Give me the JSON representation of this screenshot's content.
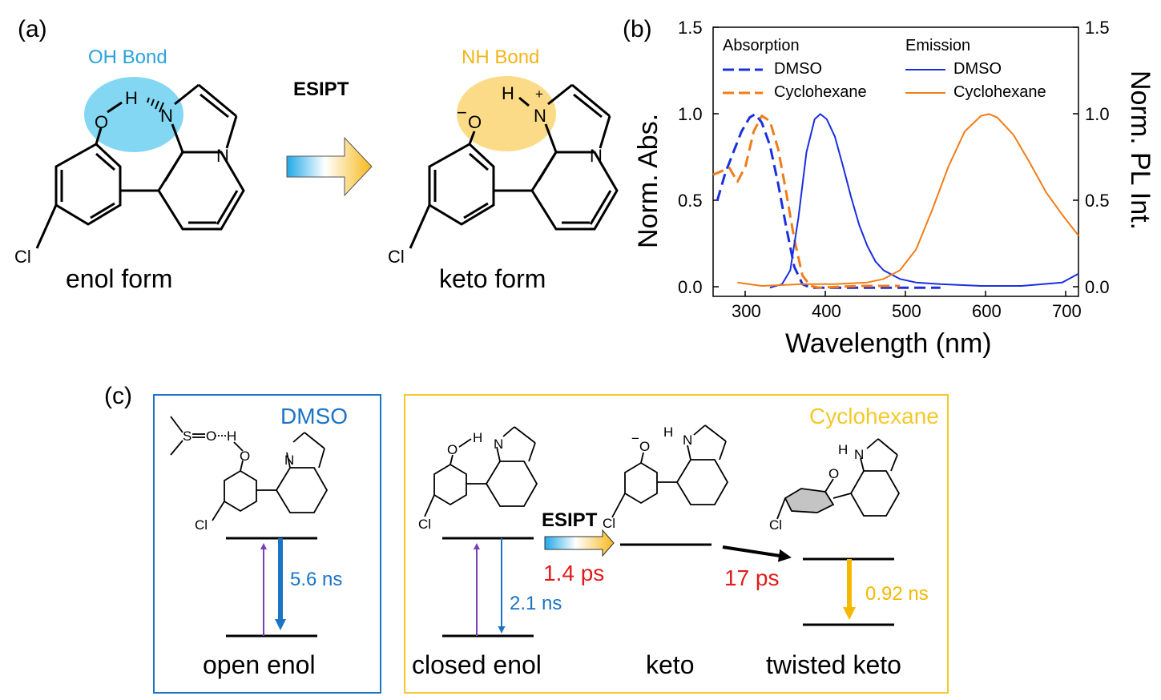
{
  "panel_a": {
    "label": "(a)",
    "oh_bond": "OH Bond",
    "nh_bond": "NH Bond",
    "esipt": "ESIPT",
    "enol_form": "enol form",
    "keto_form": "keto form",
    "atoms": {
      "O": "O",
      "H": "H",
      "N": "N",
      "Cl": "Cl",
      "minus": "−",
      "plus": "+"
    }
  },
  "panel_b": {
    "label": "(b)",
    "chart_data": {
      "type": "line",
      "xlabel": "Wavelength (nm)",
      "ylabel_left": "Norm. Abs.",
      "ylabel_right": "Norm. PL Int.",
      "xlim": [
        270,
        720
      ],
      "ylim": [
        -0.05,
        1.5
      ],
      "x_ticks": [
        "300",
        "400",
        "500",
        "600",
        "700"
      ],
      "y_ticks": [
        "0.0",
        "0.5",
        "1.0",
        "1.5"
      ],
      "legend": {
        "absorption_title": "Absorption",
        "emission_title": "Emission",
        "entries": [
          "DMSO",
          "Cyclohexane",
          "DMSO",
          "Cyclohexane"
        ]
      },
      "series": [
        {
          "name": "DMSO",
          "group": "Absorption",
          "style": "dashed",
          "color": "#1a2fe0",
          "x": [
            275,
            285,
            295,
            305,
            315,
            322,
            330,
            340,
            350,
            360,
            370,
            380,
            390,
            400,
            450,
            500,
            550
          ],
          "values": [
            0.5,
            0.66,
            0.78,
            0.9,
            0.98,
            1.0,
            0.95,
            0.82,
            0.6,
            0.35,
            0.12,
            0.02,
            0.0,
            0.0,
            0.0,
            0.0,
            0.0
          ]
        },
        {
          "name": "Cyclohexane",
          "group": "Absorption",
          "style": "dashed",
          "color": "#f07d1a",
          "x": [
            270,
            280,
            290,
            300,
            310,
            320,
            330,
            340,
            350,
            360,
            370,
            380,
            390,
            400,
            450,
            500
          ],
          "values": [
            0.65,
            0.67,
            0.69,
            0.61,
            0.7,
            0.9,
            0.99,
            0.96,
            0.8,
            0.55,
            0.28,
            0.07,
            0.01,
            0.0,
            0.01,
            0.01
          ]
        },
        {
          "name": "DMSO",
          "group": "Emission",
          "style": "solid",
          "color": "#1a2fe0",
          "x": [
            340,
            355,
            365,
            375,
            385,
            395,
            402,
            410,
            420,
            430,
            440,
            450,
            460,
            470,
            480,
            500,
            520,
            550,
            600,
            650,
            700,
            720
          ],
          "values": [
            0.0,
            0.02,
            0.1,
            0.4,
            0.78,
            0.97,
            1.0,
            0.97,
            0.87,
            0.7,
            0.52,
            0.36,
            0.24,
            0.15,
            0.1,
            0.05,
            0.03,
            0.02,
            0.01,
            0.01,
            0.03,
            0.08
          ]
        },
        {
          "name": "Cyclohexane",
          "group": "Emission",
          "style": "solid",
          "color": "#f07d1a",
          "x": [
            300,
            330,
            380,
            420,
            460,
            480,
            500,
            520,
            540,
            560,
            580,
            600,
            610,
            620,
            640,
            660,
            680,
            700,
            720
          ],
          "values": [
            0.03,
            0.01,
            0.02,
            0.02,
            0.03,
            0.05,
            0.1,
            0.22,
            0.45,
            0.7,
            0.9,
            0.99,
            1.0,
            0.98,
            0.88,
            0.72,
            0.55,
            0.42,
            0.3
          ]
        }
      ]
    }
  },
  "panel_c": {
    "label": "(c)",
    "dmso": "DMSO",
    "cyclohexane": "Cyclohexane",
    "open_enol": "open enol",
    "closed_enol": "closed enol",
    "keto": "keto",
    "twisted_keto": "twisted keto",
    "esipt": "ESIPT",
    "rate_dmso": "5.6 ns",
    "rate_closed": "2.1 ns",
    "rate_esipt": "1.4 ps",
    "rate_twist": "17 ps",
    "rate_twisted": "0.92 ns",
    "atoms": {
      "S": "S",
      "O": "O",
      "H": "H",
      "N": "N",
      "Cl": "Cl",
      "minus": "−",
      "plus": "+"
    }
  },
  "colors": {
    "dmso_blue": "#1b74c4",
    "cyclo_yellow": "#f5b800",
    "oh_bubble": "#6fd0f0",
    "nh_bubble": "#fbd77a",
    "rate_red": "#e01b1b",
    "violet": "#7a3fb5"
  }
}
